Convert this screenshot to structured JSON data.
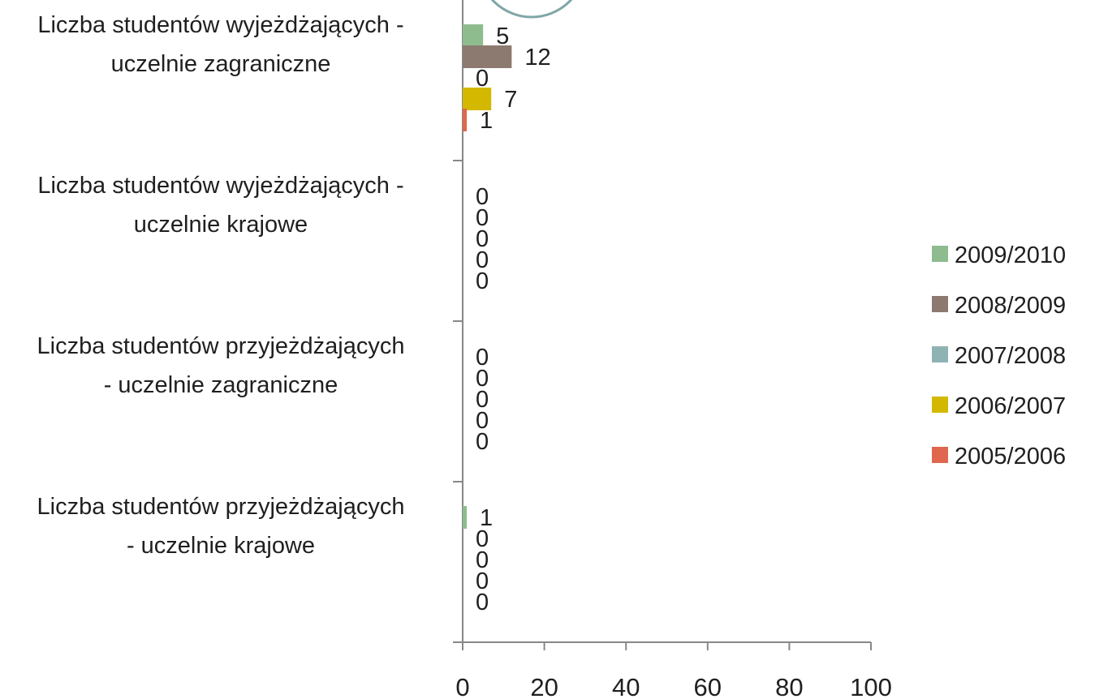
{
  "chart_data": {
    "type": "bar",
    "orientation": "horizontal",
    "categories": [
      [
        "Liczba studentów wyjeżdżających -",
        "uczelnie zagraniczne"
      ],
      [
        "Liczba studentów wyjeżdżających -",
        "uczelnie krajowe"
      ],
      [
        "Liczba studentów przyjeżdżających",
        "- uczelnie zagraniczne"
      ],
      [
        "Liczba studentów przyjeżdżających",
        "- uczelnie krajowe"
      ]
    ],
    "series": [
      {
        "name": "2009/2010",
        "color": "#8fbc8f",
        "values": [
          5,
          0,
          0,
          1
        ]
      },
      {
        "name": "2008/2009",
        "color": "#8c7a70",
        "values": [
          12,
          0,
          0,
          0
        ]
      },
      {
        "name": "2007/2008",
        "color": "#8fb3b3",
        "values": [
          0,
          0,
          0,
          0
        ]
      },
      {
        "name": "2006/2007",
        "color": "#d4b800",
        "values": [
          7,
          0,
          0,
          0
        ]
      },
      {
        "name": "2005/2006",
        "color": "#e0674e",
        "values": [
          1,
          0,
          0,
          0
        ]
      }
    ],
    "xlim": [
      0,
      100
    ],
    "xticks": [
      0,
      20,
      40,
      60,
      80,
      100
    ],
    "legend_position": "right",
    "grid": false
  }
}
